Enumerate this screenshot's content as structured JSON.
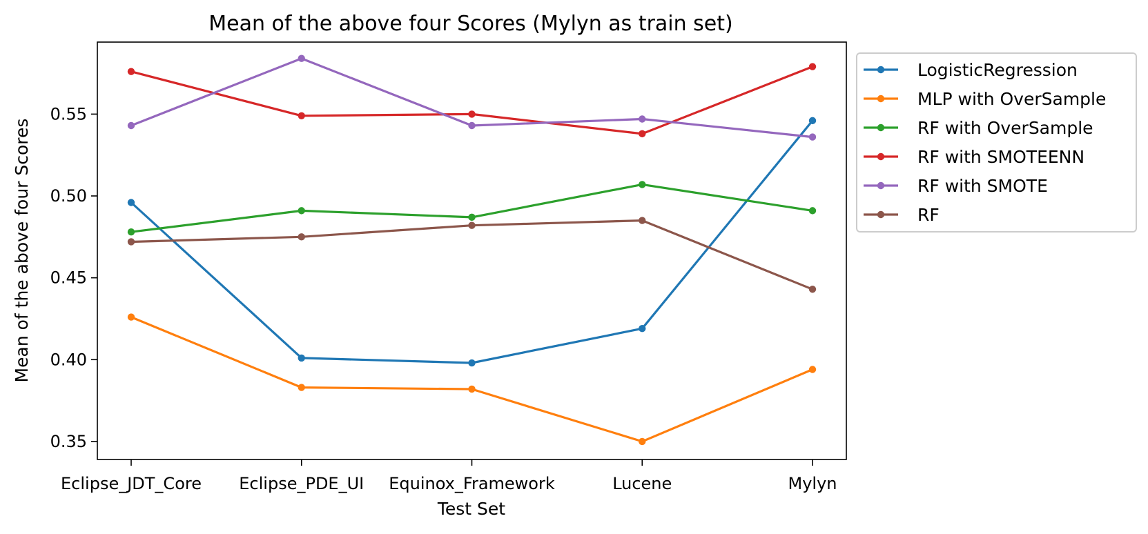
{
  "chart_data": {
    "type": "line",
    "title": "Mean of the above four Scores (Mylyn as train set)",
    "xlabel": "Test Set",
    "ylabel": "Mean of the above four Scores",
    "categories": [
      "Eclipse_JDT_Core",
      "Eclipse_PDE_UI",
      "Equinox_Framework",
      "Lucene",
      "Mylyn"
    ],
    "ylim": [
      0.339,
      0.594
    ],
    "yticks": [
      0.35,
      0.4,
      0.45,
      0.5,
      0.55
    ],
    "ytick_labels": [
      "0.35",
      "0.40",
      "0.45",
      "0.50",
      "0.55"
    ],
    "grid": false,
    "legend_position": "outside-upper-right",
    "marker": "circle",
    "series": [
      {
        "name": "LogisticRegression",
        "color": "#1f77b4",
        "values": [
          0.496,
          0.401,
          0.398,
          0.419,
          0.546
        ]
      },
      {
        "name": "MLP with OverSample",
        "color": "#ff7f0e",
        "values": [
          0.426,
          0.383,
          0.382,
          0.35,
          0.394
        ]
      },
      {
        "name": "RF with OverSample",
        "color": "#2ca02c",
        "values": [
          0.478,
          0.491,
          0.487,
          0.507,
          0.491
        ]
      },
      {
        "name": "RF with SMOTEENN",
        "color": "#d62728",
        "values": [
          0.576,
          0.549,
          0.55,
          0.538,
          0.579
        ]
      },
      {
        "name": "RF with SMOTE",
        "color": "#9467bd",
        "values": [
          0.543,
          0.584,
          0.543,
          0.547,
          0.536
        ]
      },
      {
        "name": "RF",
        "color": "#8c564b",
        "values": [
          0.472,
          0.475,
          0.482,
          0.485,
          0.443
        ]
      }
    ]
  }
}
